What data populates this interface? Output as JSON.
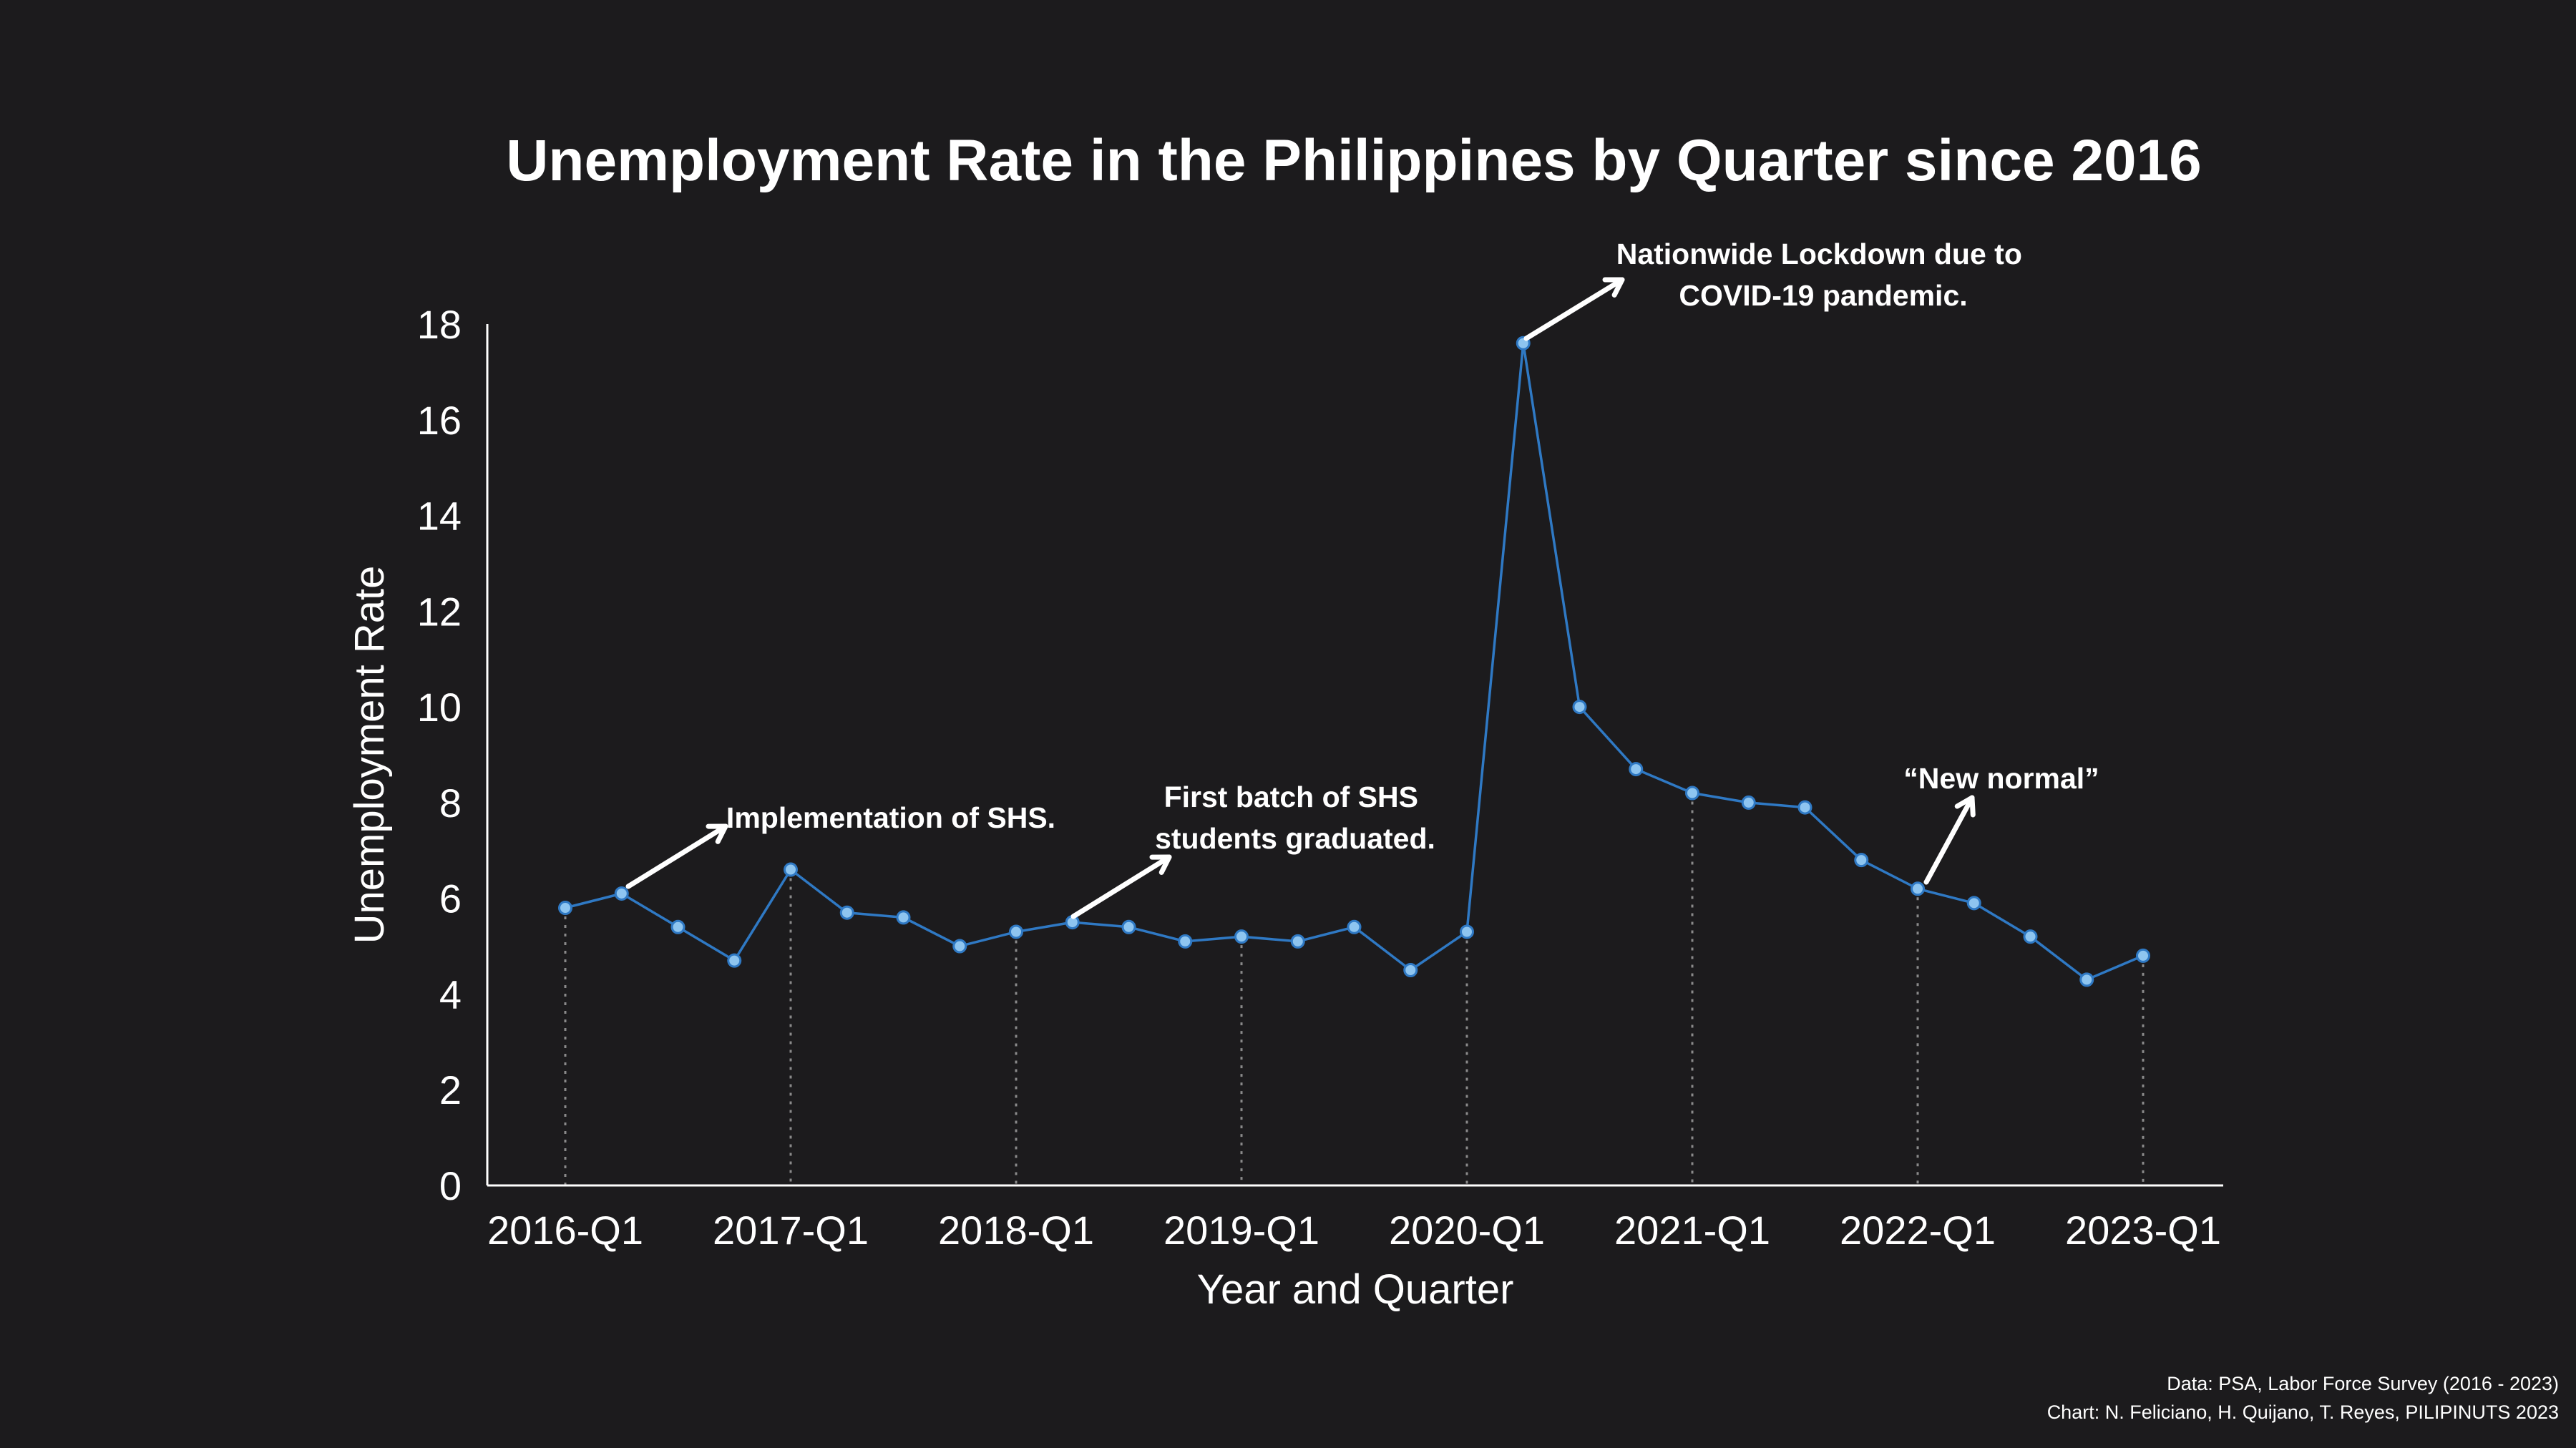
{
  "chart_data": {
    "type": "line",
    "title": "Unemployment Rate in the Philippines by Quarter since 2016",
    "xlabel": "Year and Quarter",
    "ylabel": "Unemployment Rate",
    "ylim": [
      0,
      18
    ],
    "yticks": [
      0,
      2,
      4,
      6,
      8,
      10,
      12,
      14,
      16,
      18
    ],
    "xtick_labels": [
      "2016-Q1",
      "2017-Q1",
      "2018-Q1",
      "2019-Q1",
      "2020-Q1",
      "2021-Q1",
      "2022-Q1",
      "2023-Q1"
    ],
    "grid": false,
    "line_color": "#2f79c4",
    "marker_fill": "#8ec5f0",
    "categories": [
      "2016-Q1",
      "2016-Q2",
      "2016-Q3",
      "2016-Q4",
      "2017-Q1",
      "2017-Q2",
      "2017-Q3",
      "2017-Q4",
      "2018-Q1",
      "2018-Q2",
      "2018-Q3",
      "2018-Q4",
      "2019-Q1",
      "2019-Q2",
      "2019-Q3",
      "2019-Q4",
      "2020-Q1",
      "2020-Q2",
      "2020-Q3",
      "2020-Q4",
      "2021-Q1",
      "2021-Q2",
      "2021-Q3",
      "2021-Q4",
      "2022-Q1",
      "2022-Q2",
      "2022-Q3",
      "2022-Q4",
      "2023-Q1"
    ],
    "values": [
      5.8,
      6.1,
      5.4,
      4.7,
      6.6,
      5.7,
      5.6,
      5.0,
      5.3,
      5.5,
      5.4,
      5.1,
      5.2,
      5.1,
      5.4,
      4.5,
      5.3,
      17.6,
      10.0,
      8.7,
      8.2,
      8.0,
      7.9,
      6.8,
      6.2,
      5.9,
      5.2,
      4.3,
      4.8
    ],
    "annotations": [
      {
        "lines": [
          "Implementation of SHS."
        ],
        "point": "2016-Q2"
      },
      {
        "lines": [
          "First batch of SHS",
          "students graduated."
        ],
        "point": "2018-Q2"
      },
      {
        "lines": [
          "Nationwide Lockdown due to",
          "COVID-19 pandemic."
        ],
        "point": "2020-Q2"
      },
      {
        "lines": [
          "“New normal”"
        ],
        "point": "2022-Q1"
      }
    ]
  },
  "source_note": {
    "line1": "Data: PSA, Labor Force Survey (2016 - 2023)",
    "line2": "Chart: N. Feliciano, H. Quijano, T. Reyes,  PILIPINUTS 2023"
  }
}
